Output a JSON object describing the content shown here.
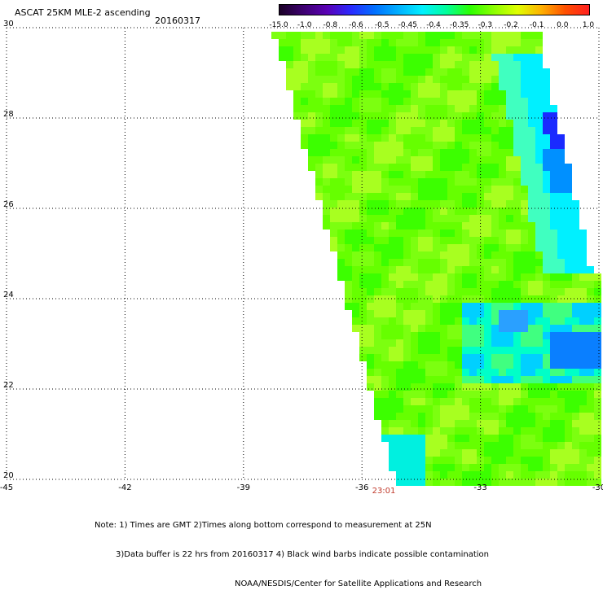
{
  "header": {
    "title": "ASCAT 25KM MLE-2 ascending",
    "date": "20160317"
  },
  "colorbar": {
    "labels": [
      "-15.0",
      "-1.0",
      "-0.8",
      "-0.6",
      "-0.5",
      "-0.45",
      "-0.4",
      "-0.35",
      "-0.3",
      "-0.2",
      "-0.1",
      "0.0",
      "1.0"
    ],
    "colors": [
      "#1a0026",
      "#3d0070",
      "#5a00b5",
      "#2a2aff",
      "#0070ff",
      "#00b0ff",
      "#00f0ff",
      "#00ff9c",
      "#2cff00",
      "#8cff00",
      "#e0ff00",
      "#ffb000",
      "#ff5000",
      "#ff2020"
    ]
  },
  "map": {
    "lon_ticks": [
      "-45",
      "-42",
      "-39",
      "-36",
      "-33",
      "-30"
    ],
    "lat_ticks": [
      "30",
      "28",
      "26",
      "24",
      "22",
      "20"
    ],
    "lon_range": [
      -45,
      -30
    ],
    "lat_range": [
      20,
      30
    ],
    "swath_time": "23:01",
    "gridlines": true
  },
  "notes": [
    "Note: 1) Times are GMT 2)Times along bottom correspond to measurement at 25N",
    "3)Data buffer is 22 hrs from 20160317 4) Black wind barbs indicate possible contamination",
    "NOAA/NESDIS/Center for Satellite Applications and Research"
  ]
}
